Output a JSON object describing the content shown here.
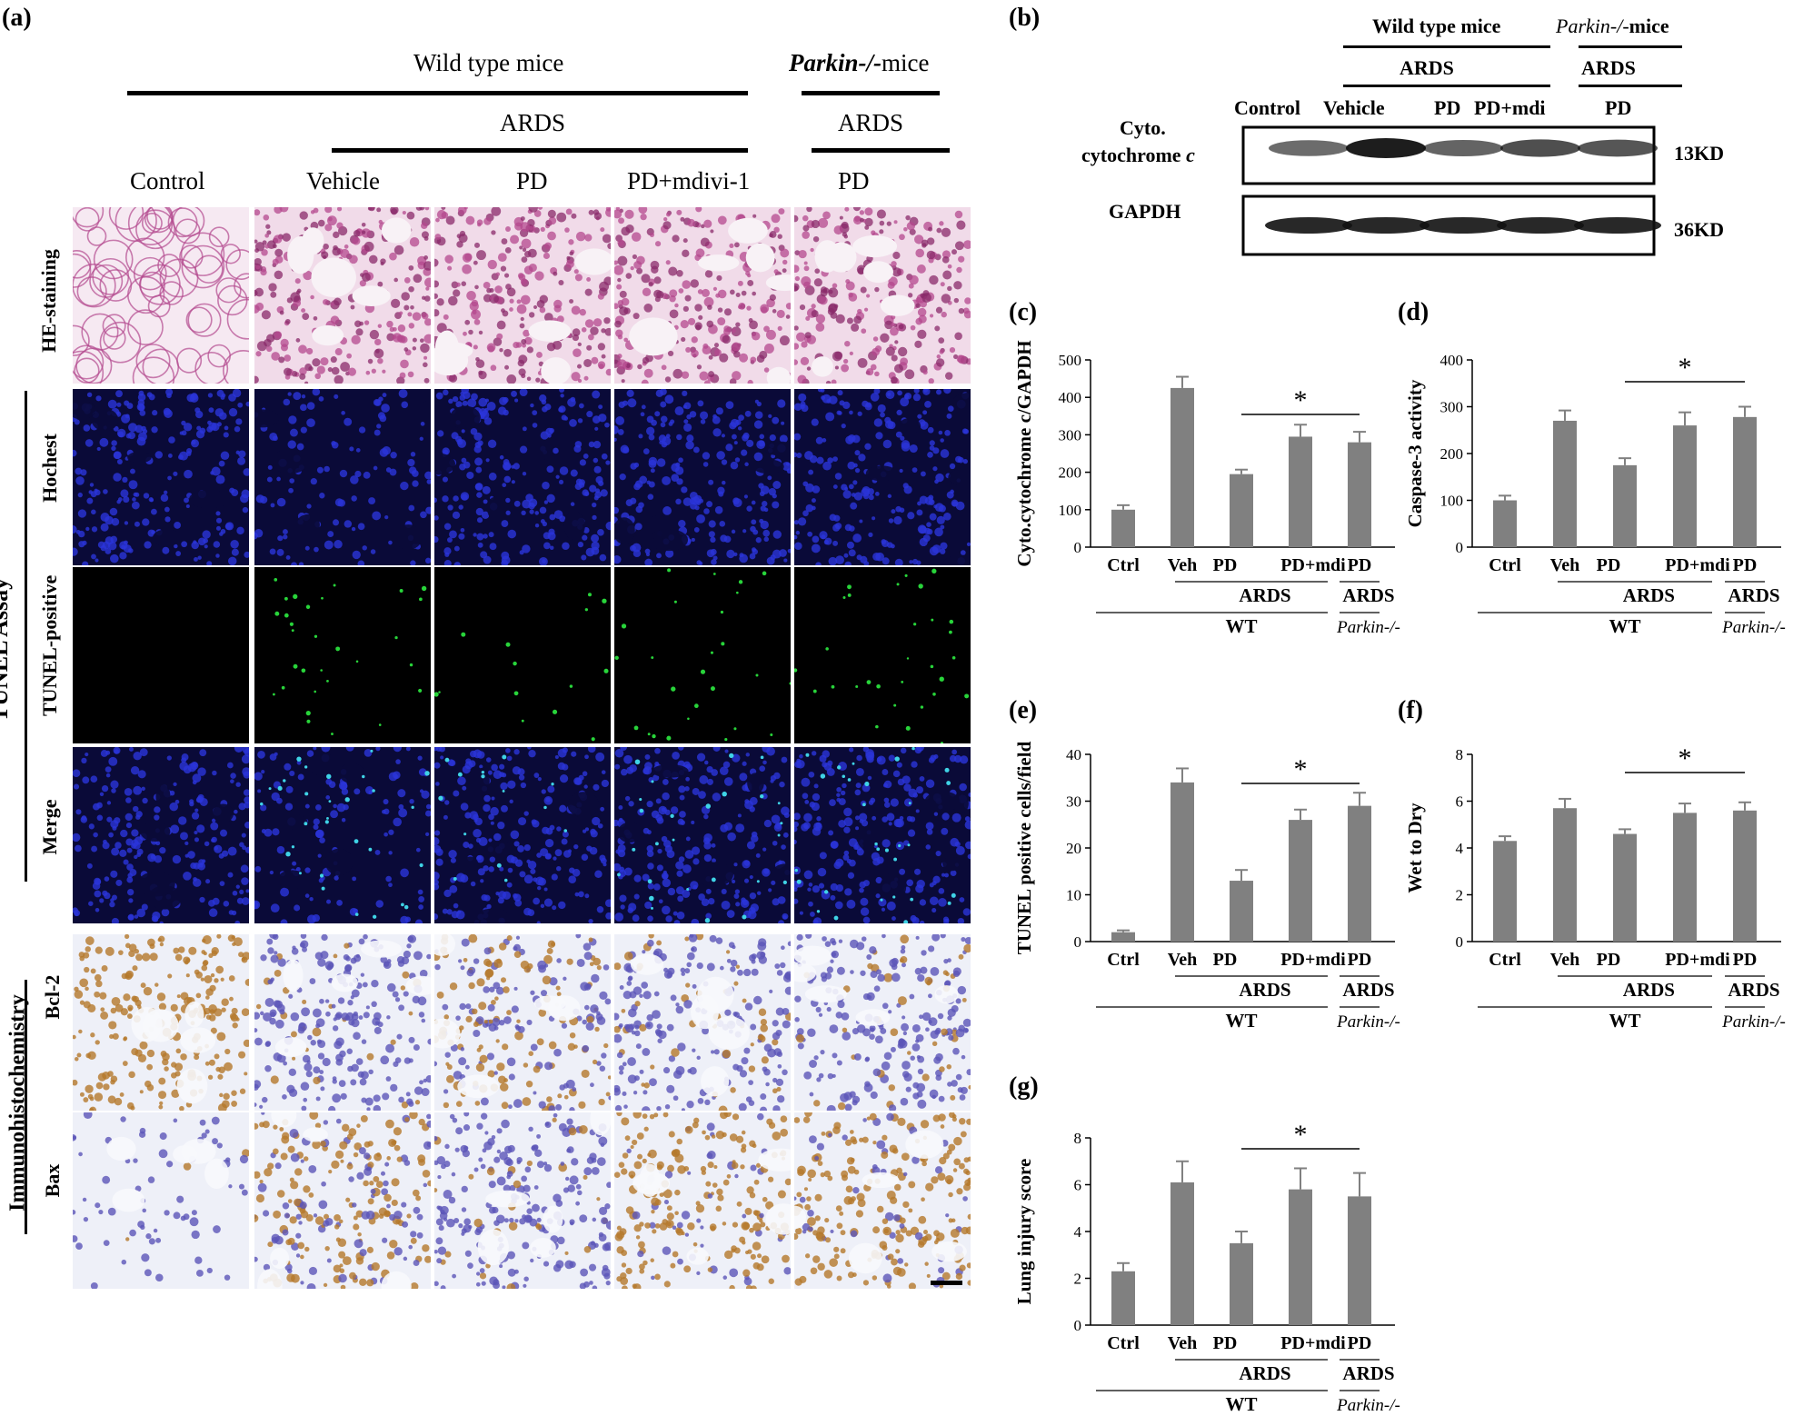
{
  "panel_a": {
    "letter": "(a)",
    "header_wt": "Wild  type mice",
    "header_parkin_italic": "Parkin-/-",
    "header_parkin_rest": "mice",
    "ards": "ARDS",
    "columns": [
      "Control",
      "Vehicle",
      "PD",
      "PD+mdivi-1",
      "PD"
    ],
    "rows": [
      "HE-staining",
      "Hochest",
      "TUNEL-positive",
      "Merge",
      "Bcl-2",
      "Bax"
    ],
    "group_tunel": "TUNEL Assay",
    "group_ihc": "Immunohistochemistry"
  },
  "panel_b": {
    "letter": "(b)",
    "header_wt": "Wild  type mice",
    "header_parkin_italic": "Parkin-/-",
    "header_parkin_rest": "mice",
    "ards": "ARDS",
    "lanes": [
      "Control",
      "Vehicle",
      "PD",
      "PD+mdi",
      "PD"
    ],
    "row1_label_line1": "Cyto.",
    "row1_label_line2": "cytochrome ",
    "row1_label_italic": "c",
    "row2_label": "GAPDH",
    "row1_size": "13KD",
    "row2_size": "36KD",
    "band_intensity_row1": [
      0.45,
      1.0,
      0.5,
      0.65,
      0.6
    ],
    "band_intensity_row2": [
      0.9,
      0.9,
      0.9,
      0.9,
      0.9
    ]
  },
  "group_labels": {
    "ards": "ARDS",
    "wt": "WT",
    "parkin": "Parkin-/-",
    "star": "*"
  },
  "chart_data": [
    {
      "id": "c",
      "letter": "(c)",
      "type": "bar",
      "categories": [
        "Ctrl",
        "Veh",
        "PD",
        "PD+mdi",
        "PD"
      ],
      "values": [
        100,
        425,
        195,
        295,
        280
      ],
      "errors": [
        12,
        30,
        12,
        32,
        28
      ],
      "ylabel": "Cyto.cytochrome c/GAPDH",
      "ylim": [
        0,
        500
      ],
      "yticks": [
        0,
        100,
        200,
        300,
        400,
        500
      ],
      "significance": {
        "from": 2,
        "to": 4,
        "label": "*"
      }
    },
    {
      "id": "d",
      "letter": "(d)",
      "type": "bar",
      "categories": [
        "Ctrl",
        "Veh",
        "PD",
        "PD+mdi",
        "PD"
      ],
      "values": [
        100,
        270,
        175,
        260,
        278
      ],
      "errors": [
        10,
        22,
        15,
        28,
        22
      ],
      "ylabel": "Caspase-3 activity",
      "ylim": [
        0,
        400
      ],
      "yticks": [
        0,
        100,
        200,
        300,
        400
      ],
      "significance": {
        "from": 2,
        "to": 4,
        "label": "*"
      }
    },
    {
      "id": "e",
      "letter": "(e)",
      "type": "bar",
      "categories": [
        "Ctrl",
        "Veh",
        "PD",
        "PD+mdi",
        "PD"
      ],
      "values": [
        2,
        34,
        13,
        26,
        29
      ],
      "errors": [
        0.4,
        3,
        2.3,
        2.2,
        2.8
      ],
      "ylabel": "TUNEL positive cells/field",
      "ylim": [
        0,
        40
      ],
      "yticks": [
        0,
        10,
        20,
        30,
        40
      ],
      "significance": {
        "from": 2,
        "to": 4,
        "label": "*"
      }
    },
    {
      "id": "f",
      "letter": "(f)",
      "type": "bar",
      "categories": [
        "Ctrl",
        "Veh",
        "PD",
        "PD+mdi",
        "PD"
      ],
      "values": [
        4.3,
        5.7,
        4.6,
        5.5,
        5.6
      ],
      "errors": [
        0.2,
        0.4,
        0.2,
        0.4,
        0.35
      ],
      "ylabel": "Wet to Dry",
      "ylim": [
        0,
        8
      ],
      "yticks": [
        0,
        2,
        4,
        6,
        8
      ],
      "significance": {
        "from": 2,
        "to": 4,
        "label": "*"
      }
    },
    {
      "id": "g",
      "letter": "(g)",
      "type": "bar",
      "categories": [
        "Ctrl",
        "Veh",
        "PD",
        "PD+mdi",
        "PD"
      ],
      "values": [
        2.3,
        6.1,
        3.5,
        5.8,
        5.5
      ],
      "errors": [
        0.35,
        0.9,
        0.5,
        0.9,
        1.0
      ],
      "ylabel": "Lung injury score",
      "ylim": [
        0,
        8
      ],
      "yticks": [
        0,
        2,
        4,
        6,
        8
      ],
      "significance": {
        "from": 2,
        "to": 4,
        "label": "*"
      }
    }
  ],
  "colors": {
    "bar": "#808080",
    "he_bg": "#f1dbe9",
    "he_cell": "#b4488e",
    "fluor_bg": "#0a0a38",
    "nuclei": "#2b34d9",
    "tunel": "#28d43a",
    "merge_dot": "#3fd3e6",
    "ihc_bg": "#eef0f8",
    "ihc_blue": "#5b55b8",
    "ihc_brown": "#b4782a"
  }
}
